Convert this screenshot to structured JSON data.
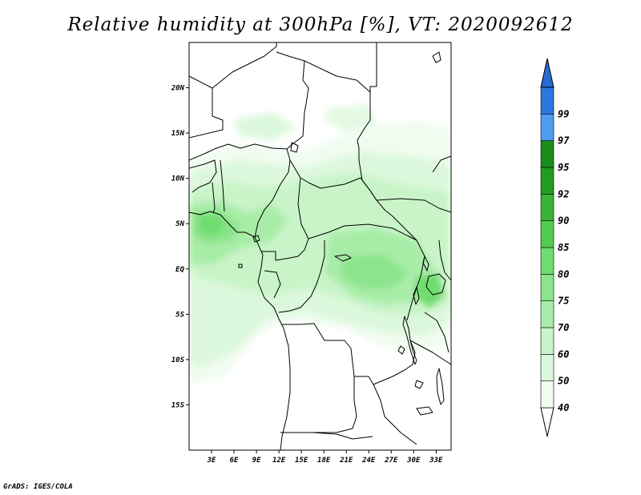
{
  "title": "Relative humidity at 300hPa [%], VT: 2020092612",
  "footer": "GrADS: IGES/COLA",
  "map": {
    "lon_range": [
      0,
      35
    ],
    "lat_range": [
      -20,
      25
    ],
    "lat_ticks": [
      {
        "value": 20,
        "label": "20N"
      },
      {
        "value": 15,
        "label": "15N"
      },
      {
        "value": 10,
        "label": "10N"
      },
      {
        "value": 5,
        "label": "5N"
      },
      {
        "value": 0,
        "label": "EQ"
      },
      {
        "value": -5,
        "label": "5S"
      },
      {
        "value": -10,
        "label": "10S"
      },
      {
        "value": -15,
        "label": "15S"
      }
    ],
    "lon_ticks": [
      {
        "value": 3,
        "label": "3E"
      },
      {
        "value": 6,
        "label": "6E"
      },
      {
        "value": 9,
        "label": "9E"
      },
      {
        "value": 12,
        "label": "12E"
      },
      {
        "value": 15,
        "label": "15E"
      },
      {
        "value": 18,
        "label": "18E"
      },
      {
        "value": 21,
        "label": "21E"
      },
      {
        "value": 24,
        "label": "24E"
      },
      {
        "value": 27,
        "label": "27E"
      },
      {
        "value": 30,
        "label": "30E"
      },
      {
        "value": 33,
        "label": "33E"
      }
    ]
  },
  "colorbar": {
    "levels": [
      {
        "label": "40",
        "color": "#f0fcf0"
      },
      {
        "label": "50",
        "color": "#dcf8dc"
      },
      {
        "label": "60",
        "color": "#c8f4c8"
      },
      {
        "label": "70",
        "color": "#a8eca8"
      },
      {
        "label": "75",
        "color": "#8ce48c"
      },
      {
        "label": "80",
        "color": "#6edc6e"
      },
      {
        "label": "85",
        "color": "#50cc50"
      },
      {
        "label": "90",
        "color": "#38b438"
      },
      {
        "label": "92",
        "color": "#209c20"
      },
      {
        "label": "95",
        "color": "#1a8c1a"
      },
      {
        "label": "97",
        "color": "#4c9cf0"
      },
      {
        "label": "99",
        "color": "#2a78e0"
      }
    ],
    "top_color": "#2a6ad0",
    "bottom_color": "#ffffff"
  }
}
